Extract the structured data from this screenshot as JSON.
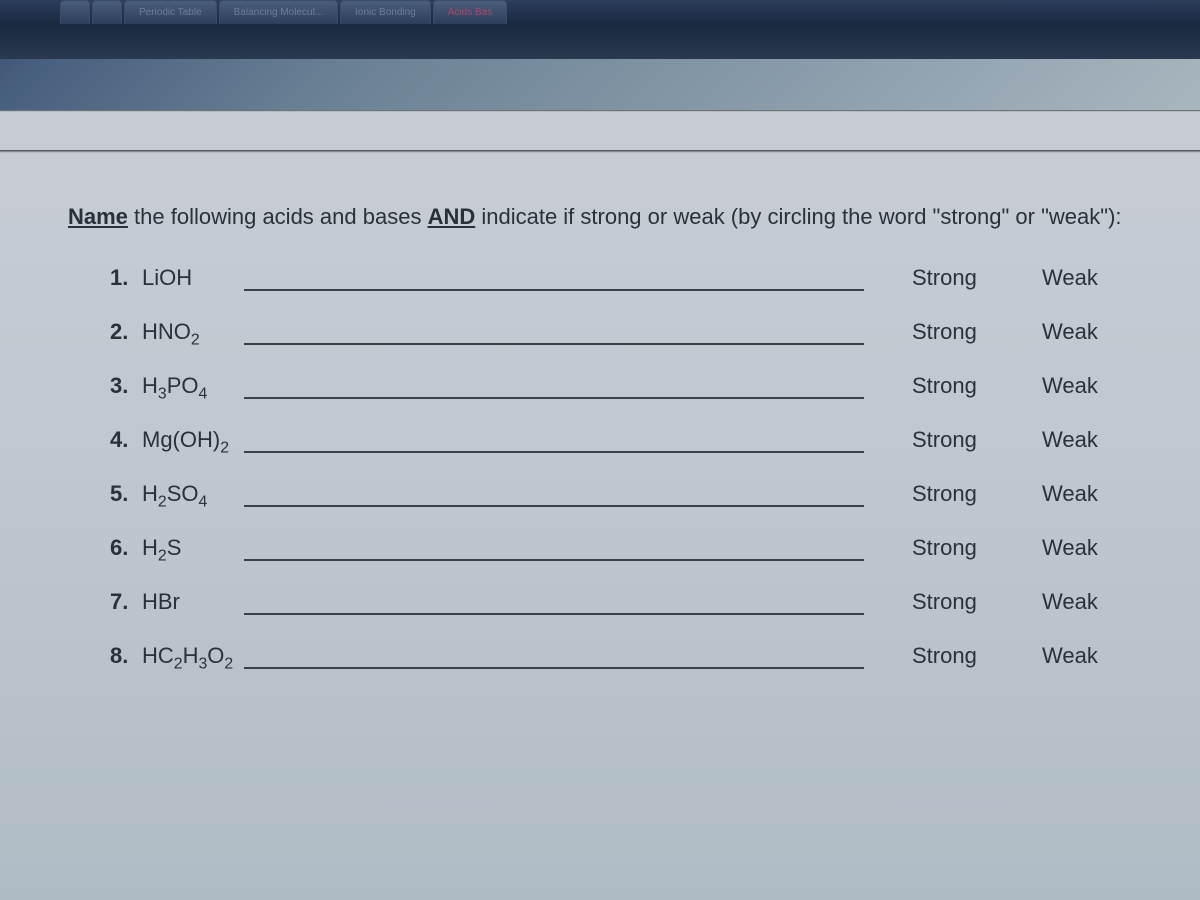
{
  "tabs": [
    {
      "label": ""
    },
    {
      "label": ""
    },
    {
      "label": "Periodic Table"
    },
    {
      "label": "Balancing Molecul..."
    },
    {
      "label": "Ionic Bonding"
    },
    {
      "label": "Acids Bas",
      "cls": "acids"
    }
  ],
  "instruction": {
    "p1": "Name",
    "p2": " the following acids and bases ",
    "p3": "AND",
    "p4": " indicate if strong or weak (by circling the word \"strong\" or \"weak\"):"
  },
  "labels": {
    "strong": "Strong",
    "weak": "Weak"
  },
  "items": [
    {
      "num": "1.",
      "formula_html": "LiOH"
    },
    {
      "num": "2.",
      "formula_html": "HNO<sub>2</sub>"
    },
    {
      "num": "3.",
      "formula_html": "H<sub>3</sub>PO<sub>4</sub>"
    },
    {
      "num": "4.",
      "formula_html": "Mg(OH)<sub>2</sub>"
    },
    {
      "num": "5.",
      "formula_html": "H<sub>2</sub>SO<sub>4</sub>"
    },
    {
      "num": "6.",
      "formula_html": "H<sub>2</sub>S"
    },
    {
      "num": "7.",
      "formula_html": "HBr"
    },
    {
      "num": "8.",
      "formula_html": "HC<sub>2</sub>H<sub>3</sub>O<sub>2</sub>"
    }
  ],
  "styles": {
    "bg_gradient": "linear-gradient(135deg, #3a4d6e 0%, #48607f 5%, #6a8195 20%, #a5b3bd 60%, #c0c8cd 100%)",
    "text_color": "#2a3138",
    "font_size_body": 22
  }
}
